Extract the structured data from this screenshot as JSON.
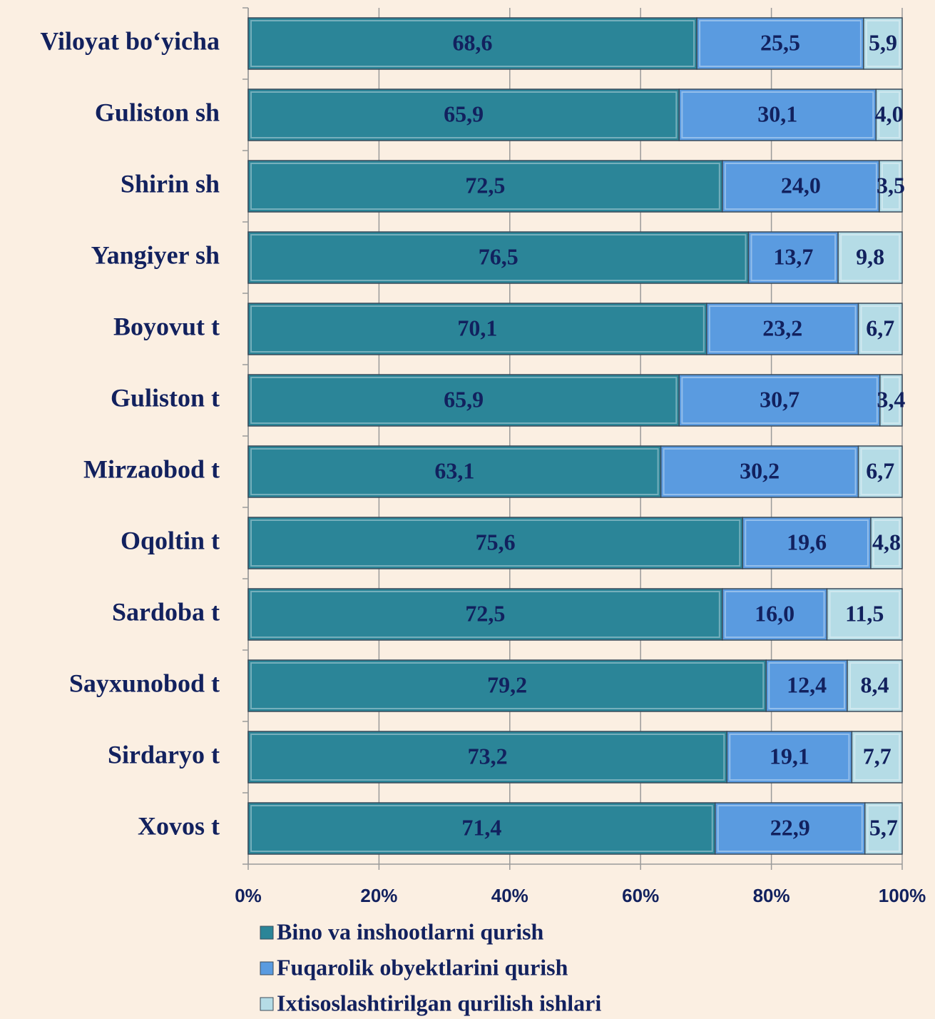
{
  "chart_data": {
    "type": "stacked-bar-horizontal",
    "categories": [
      "Viloyat bo‘yicha",
      "Guliston sh",
      "Shirin sh",
      "Yangiyer sh",
      "Boyovut t",
      "Guliston t",
      "Mirzaobod t",
      "Oqoltin t",
      "Sardoba t",
      "Sayxunobod t",
      "Sirdaryo t",
      "Xovos t"
    ],
    "series": [
      {
        "name": "Bino va inshootlarni qurish",
        "color": "#2b8598",
        "values": [
          68.6,
          65.9,
          72.5,
          76.5,
          70.1,
          65.9,
          63.1,
          75.6,
          72.5,
          79.2,
          73.2,
          71.4
        ],
        "value_labels": [
          "68,6",
          "65,9",
          "72,5",
          "76,5",
          "70,1",
          "65,9",
          "63,1",
          "75,6",
          "72,5",
          "79,2",
          "73,2",
          "71,4"
        ]
      },
      {
        "name": "Fuqarolik obyektlarini qurish",
        "color": "#5a9be0",
        "values": [
          25.5,
          30.1,
          24.0,
          13.7,
          23.2,
          30.7,
          30.2,
          19.6,
          16.0,
          12.4,
          19.1,
          22.9
        ],
        "value_labels": [
          "25,5",
          "30,1",
          "24,0",
          "13,7",
          "23,2",
          "30,7",
          "30,2",
          "19,6",
          "16,0",
          "12,4",
          "19,1",
          "22,9"
        ]
      },
      {
        "name": "Ixtisoslashtirilgan qurilish ishlari",
        "color": "#b5dce6",
        "values": [
          5.9,
          4.0,
          3.5,
          9.8,
          6.7,
          3.4,
          6.7,
          4.8,
          11.5,
          8.4,
          7.7,
          5.7
        ],
        "value_labels": [
          "5,9",
          "4,0",
          "3,5",
          "9,8",
          "6,7",
          "3,4",
          "6,7",
          "4,8",
          "11,5",
          "8,4",
          "7,7",
          "5,7"
        ]
      }
    ],
    "xlim": [
      0,
      100
    ],
    "xticks": [
      {
        "value": 0,
        "label": "0%"
      },
      {
        "value": 20,
        "label": "20%"
      },
      {
        "value": 40,
        "label": "40%"
      },
      {
        "value": 60,
        "label": "60%"
      },
      {
        "value": 80,
        "label": "80%"
      },
      {
        "value": 100,
        "label": "100%"
      }
    ],
    "grid": true
  }
}
